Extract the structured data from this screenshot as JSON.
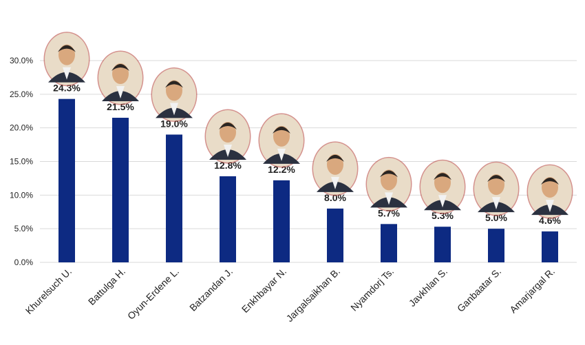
{
  "chart_data": {
    "type": "bar",
    "title": "",
    "xlabel": "",
    "ylabel": "",
    "categories": [
      "Khurelsuch U.",
      "Battulga H.",
      "Oyun-Erdene L.",
      "Batzandan J.",
      "Enkhbayar N.",
      "Jargalsaikhan B.",
      "Nyamdorj Ts.",
      "Javkhlan S.",
      "Ganbaatar S.",
      "Amarjargal R."
    ],
    "values": [
      24.3,
      21.5,
      19.0,
      12.8,
      12.2,
      8.0,
      5.7,
      5.3,
      5.0,
      4.6
    ],
    "data_labels": [
      "24.3%",
      "21.5%",
      "19.0%",
      "12.8%",
      "12.2%",
      "8.0%",
      "5.7%",
      "5.3%",
      "5.0%",
      "4.6%"
    ],
    "ylim": [
      0,
      30
    ],
    "yticks": [
      "0.0%",
      "5.0%",
      "10.0%",
      "15.0%",
      "20.0%",
      "25.0%",
      "30.0%"
    ],
    "grid": true,
    "legend": "none",
    "photos": [
      "person-photo",
      "person-photo",
      "person-photo",
      "person-photo",
      "person-photo",
      "person-photo",
      "person-photo",
      "person-photo",
      "person-photo",
      "person-photo"
    ],
    "colors": {
      "bar": "#0d2a82",
      "grid": "#d9d9d9",
      "text": "#222222",
      "photo_bg": "#e9dcc8",
      "photo_ring": "#b0372f"
    }
  }
}
